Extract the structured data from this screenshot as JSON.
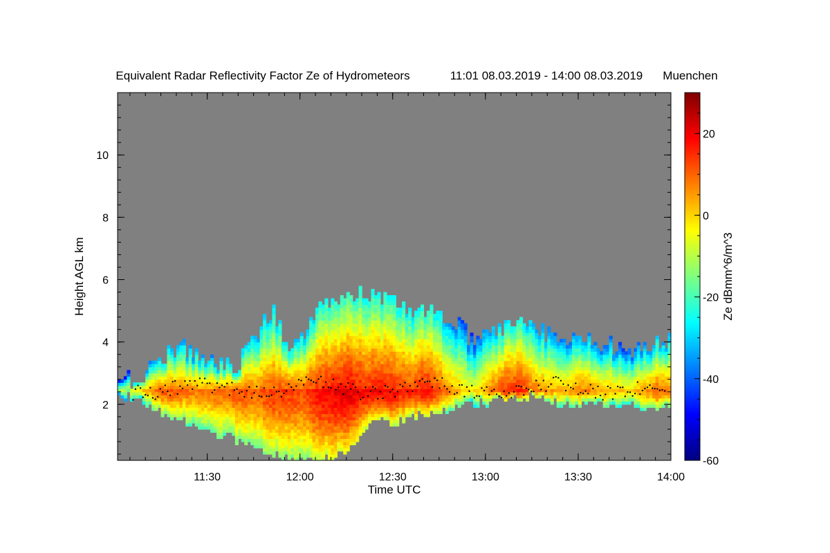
{
  "chart_data": {
    "type": "heatmap",
    "title": "Equivalent Radar Reflectivity Factor Ze of Hydrometeors",
    "time_range": "11:01 08.03.2019 - 14:00 08.03.2019",
    "location": "Muenchen",
    "xlabel": "Time UTC",
    "ylabel": "Height AGL km",
    "colorbar_label": "Ze dBmm^6/m^3",
    "x_minutes_range": [
      661,
      840
    ],
    "ylim": [
      0.2,
      12.0
    ],
    "zlim": [
      -60,
      30
    ],
    "x_ticks": [
      {
        "minutes": 690,
        "label": "11:30"
      },
      {
        "minutes": 720,
        "label": "12:00"
      },
      {
        "minutes": 750,
        "label": "12:30"
      },
      {
        "minutes": 780,
        "label": "13:00"
      },
      {
        "minutes": 810,
        "label": "13:30"
      },
      {
        "minutes": 840,
        "label": "14:00"
      }
    ],
    "y_ticks": [
      {
        "value": 2,
        "label": "2"
      },
      {
        "value": 4,
        "label": "4"
      },
      {
        "value": 6,
        "label": "6"
      },
      {
        "value": 8,
        "label": "8"
      },
      {
        "value": 10,
        "label": "10"
      }
    ],
    "colorbar_ticks": [
      {
        "value": -60,
        "label": "-60"
      },
      {
        "value": -40,
        "label": "-40"
      },
      {
        "value": -20,
        "label": "-20"
      },
      {
        "value": 0,
        "label": "0"
      },
      {
        "value": 20,
        "label": "20"
      }
    ],
    "no_data_color": "#808080",
    "colormap": [
      "#00007f",
      "#0000ff",
      "#007fff",
      "#00ffff",
      "#7fff7f",
      "#ffff00",
      "#ff7f00",
      "#ff0000",
      "#7f0000"
    ],
    "cloud_profile": {
      "minutes": [
        661,
        666,
        671,
        676,
        681,
        686,
        691,
        696,
        701,
        706,
        711,
        716,
        721,
        726,
        731,
        736,
        741,
        746,
        751,
        756,
        761,
        766,
        771,
        776,
        781,
        786,
        791,
        796,
        801,
        806,
        811,
        816,
        821,
        826,
        831,
        836,
        840
      ],
      "cloud_top_km": [
        2.9,
        2.8,
        3.0,
        3.6,
        3.9,
        3.7,
        3.4,
        3.2,
        3.4,
        4.3,
        5.0,
        4.0,
        4.2,
        5.0,
        5.3,
        5.5,
        5.6,
        5.4,
        5.2,
        5.0,
        5.0,
        4.8,
        4.6,
        4.0,
        4.2,
        4.5,
        4.8,
        4.4,
        4.2,
        4.2,
        4.1,
        4.0,
        3.9,
        3.8,
        3.7,
        4.0,
        4.0
      ],
      "cloud_base_km": [
        2.3,
        2.2,
        2.0,
        1.7,
        1.5,
        1.3,
        1.1,
        1.0,
        0.8,
        0.6,
        0.4,
        0.3,
        0.2,
        0.2,
        0.3,
        0.6,
        1.3,
        1.5,
        1.4,
        1.6,
        1.7,
        1.8,
        1.9,
        2.0,
        2.1,
        2.2,
        2.2,
        2.3,
        2.1,
        2.0,
        2.0,
        2.0,
        2.0,
        2.1,
        1.9,
        1.8,
        2.0
      ],
      "peak_dbz": [
        -10,
        -5,
        5,
        12,
        10,
        8,
        8,
        10,
        12,
        10,
        14,
        14,
        12,
        18,
        20,
        22,
        18,
        20,
        18,
        16,
        20,
        12,
        4,
        -2,
        8,
        16,
        18,
        10,
        6,
        4,
        10,
        6,
        4,
        0,
        6,
        12,
        8
      ]
    },
    "melting_layer_km": 2.5
  }
}
